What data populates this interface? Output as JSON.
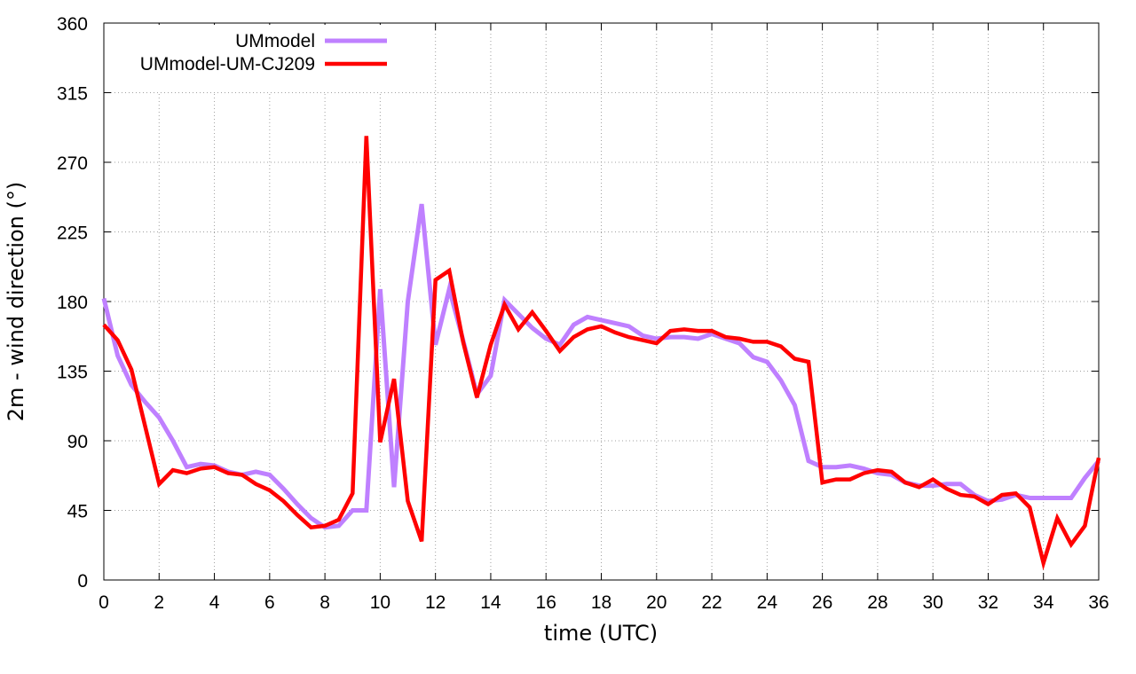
{
  "chart_data": {
    "type": "line",
    "title": "",
    "xlabel": "time (UTC)",
    "ylabel": "2m - wind direction (°)",
    "xlim": [
      0,
      36
    ],
    "ylim": [
      0,
      360
    ],
    "xticks": [
      0,
      2,
      4,
      6,
      8,
      10,
      12,
      14,
      16,
      18,
      20,
      22,
      24,
      26,
      28,
      30,
      32,
      34,
      36
    ],
    "yticks": [
      0,
      45,
      90,
      135,
      180,
      225,
      270,
      315,
      360
    ],
    "grid": true,
    "legend_position": "top-left",
    "series": [
      {
        "name": "UMmodel",
        "color": "#bf80ff",
        "x": [
          0,
          0.5,
          1,
          1.5,
          2,
          2.5,
          3,
          3.5,
          4,
          4.5,
          5,
          5.5,
          6,
          6.5,
          7,
          7.5,
          8,
          8.5,
          9,
          9.5,
          10,
          10.5,
          11,
          11.5,
          12,
          12.5,
          13,
          13.5,
          14,
          14.5,
          15,
          15.5,
          16,
          16.5,
          17,
          17.5,
          18,
          18.5,
          19,
          19.5,
          20,
          20.5,
          21,
          21.5,
          22,
          22.5,
          23,
          23.5,
          24,
          24.5,
          25,
          25.5,
          26,
          26.5,
          27,
          27.5,
          28,
          28.5,
          29,
          29.5,
          30,
          30.5,
          31,
          31.5,
          32,
          32.5,
          33,
          33.5,
          34,
          34.5,
          35,
          35.5,
          36
        ],
        "values": [
          182,
          145,
          126,
          115,
          105,
          90,
          73,
          75,
          74,
          70,
          68,
          70,
          68,
          59,
          49,
          40,
          34,
          35,
          45,
          45,
          188,
          60,
          180,
          243,
          152,
          188,
          155,
          120,
          132,
          181,
          172,
          163,
          156,
          152,
          165,
          170,
          168,
          166,
          164,
          158,
          156,
          157,
          157,
          156,
          159,
          156,
          153,
          144,
          141,
          129,
          113,
          77,
          73,
          73,
          74,
          72,
          69,
          68,
          63,
          61,
          61,
          62,
          62,
          55,
          51,
          52,
          55,
          53,
          53,
          53,
          53,
          66,
          77
        ]
      },
      {
        "name": "UMmodel-UM-CJ209",
        "color": "#ff0000",
        "x": [
          0,
          0.5,
          1,
          1.5,
          2,
          2.5,
          3,
          3.5,
          4,
          4.5,
          5,
          5.5,
          6,
          6.5,
          7,
          7.5,
          8,
          8.5,
          9,
          9.5,
          10,
          10.5,
          11,
          11.5,
          12,
          12.5,
          13,
          13.5,
          14,
          14.5,
          15,
          15.5,
          16,
          16.5,
          17,
          17.5,
          18,
          18.5,
          19,
          19.5,
          20,
          20.5,
          21,
          21.5,
          22,
          22.5,
          23,
          23.5,
          24,
          24.5,
          25,
          25.5,
          26,
          26.5,
          27,
          27.5,
          28,
          28.5,
          29,
          29.5,
          30,
          30.5,
          31,
          31.5,
          32,
          32.5,
          33,
          33.5,
          34,
          34.5,
          35,
          35.5,
          36
        ],
        "values": [
          165,
          155,
          136,
          99,
          62,
          71,
          69,
          72,
          73,
          69,
          68,
          62,
          58,
          51,
          42,
          34,
          35,
          39,
          56,
          287,
          89,
          130,
          51,
          25,
          194,
          200,
          154,
          118,
          152,
          178,
          162,
          173,
          161,
          148,
          157,
          162,
          164,
          160,
          157,
          155,
          153,
          161,
          162,
          161,
          161,
          157,
          156,
          154,
          154,
          151,
          143,
          141,
          63,
          65,
          65,
          69,
          71,
          70,
          63,
          60,
          65,
          59,
          55,
          54,
          49,
          55,
          56,
          47,
          11,
          40,
          23,
          35,
          79
        ]
      }
    ]
  }
}
